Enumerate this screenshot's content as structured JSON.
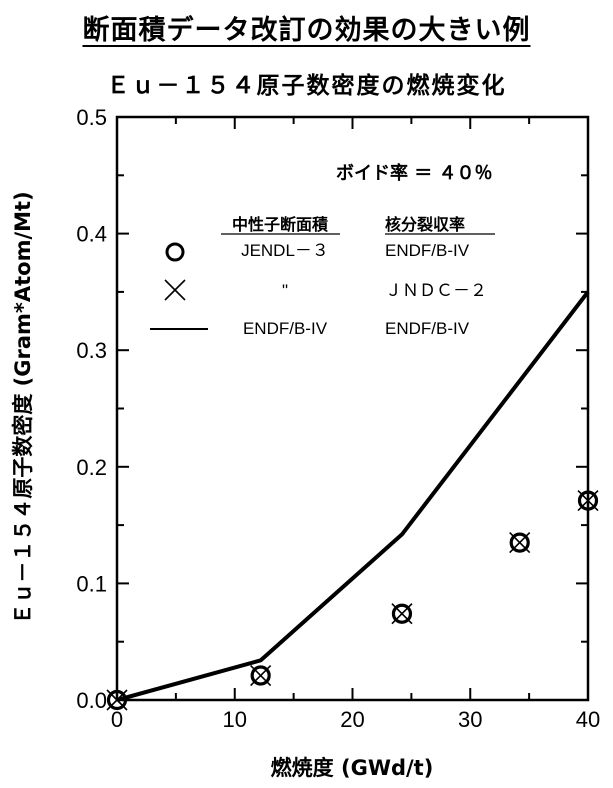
{
  "page": {
    "title": "断面積データ改訂の効果の大きい例"
  },
  "chart_data": {
    "type": "scatter",
    "title": "Ｅｕ－１５４原子数密度の燃焼変化",
    "xlabel": "燃焼度 (GWd/t)",
    "ylabel": "Ｅｕ－１５４原子数密度 (Gram*Atom/Mt)",
    "xlim": [
      0,
      40
    ],
    "ylim": [
      0.0,
      0.5
    ],
    "x_ticks": [
      "0",
      "10",
      "20",
      "30",
      "40"
    ],
    "y_ticks": [
      "0.0",
      "0.1",
      "0.2",
      "0.3",
      "0.4",
      "0.5"
    ],
    "annotation": "ボイド率 ＝ ４０％",
    "legend_headers": {
      "cross_section": "中性子断面積",
      "fission_yield": "核分裂収率"
    },
    "series": [
      {
        "name": "JENDL－３ / ENDF/B-IV",
        "cross_section": "JENDL－３",
        "fission_yield": "ENDF/B-IV",
        "marker": "circle",
        "points": [
          [
            0,
            0.0
          ],
          [
            12.2,
            0.021
          ],
          [
            24.2,
            0.074
          ],
          [
            34.2,
            0.135
          ],
          [
            40,
            0.171
          ]
        ]
      },
      {
        "name": "\" / ＪＮＤＣ－２",
        "cross_section": "\"",
        "fission_yield": "ＪＮＤＣ－２",
        "marker": "x",
        "points": [
          [
            0,
            0.0
          ],
          [
            12.2,
            0.021
          ],
          [
            24.2,
            0.074
          ],
          [
            34.2,
            0.135
          ],
          [
            40,
            0.171
          ]
        ]
      },
      {
        "name": "ENDF/B-IV / ENDF/B-IV",
        "cross_section": "ENDF/B-IV",
        "fission_yield": "ENDF/B-IV",
        "marker": "line",
        "points": [
          [
            0,
            0.0
          ],
          [
            12.2,
            0.034
          ],
          [
            24.2,
            0.142
          ],
          [
            40,
            0.35
          ]
        ]
      }
    ],
    "grid": false,
    "legend_position": "top-left"
  }
}
